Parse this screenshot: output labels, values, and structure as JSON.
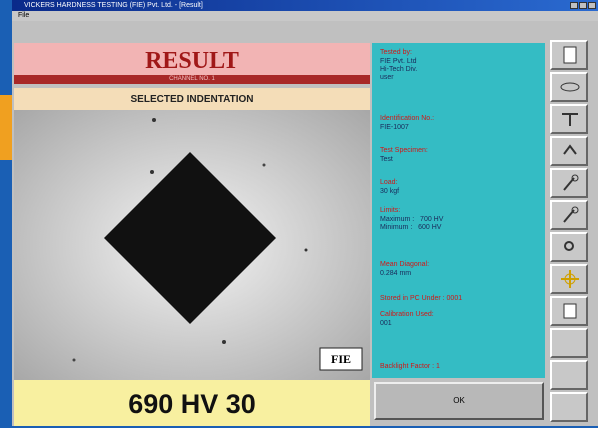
{
  "window": {
    "title": "VICKERS HARDNESS TESTING (FIE) Pvt. Ltd. - [Result]",
    "menu": [
      "File"
    ]
  },
  "result": {
    "heading": "RESULT",
    "channel": "CHANNEL NO. 1",
    "subheading": "SELECTED INDENTATION",
    "logo": "FIE",
    "value": "690 HV 30"
  },
  "info": {
    "fields": [
      {
        "label": "Tested by:",
        "lines": [
          "FIE Pvt. Ltd",
          "Hi-Tech Div.",
          "user"
        ]
      },
      {
        "label": "Identification No.:",
        "lines": [
          "FIE-1007"
        ]
      },
      {
        "label": "Test Specimen:",
        "lines": [
          "Test"
        ]
      },
      {
        "label": "Load:",
        "lines": [
          "30 kgf"
        ]
      },
      {
        "label": "Limits:",
        "lines": [
          "Maximum :   700 HV",
          "Minimum :   600 HV"
        ]
      },
      {
        "label": "Mean Diagonal:",
        "lines": [
          "0.284 mm"
        ]
      },
      {
        "label": "Stored in PC Under : 0001",
        "lines": []
      },
      {
        "label": "Calibration Used:",
        "lines": [
          "001"
        ]
      }
    ],
    "backlight": "Backlight Factor : 1"
  },
  "buttons": {
    "ok": "OK"
  }
}
